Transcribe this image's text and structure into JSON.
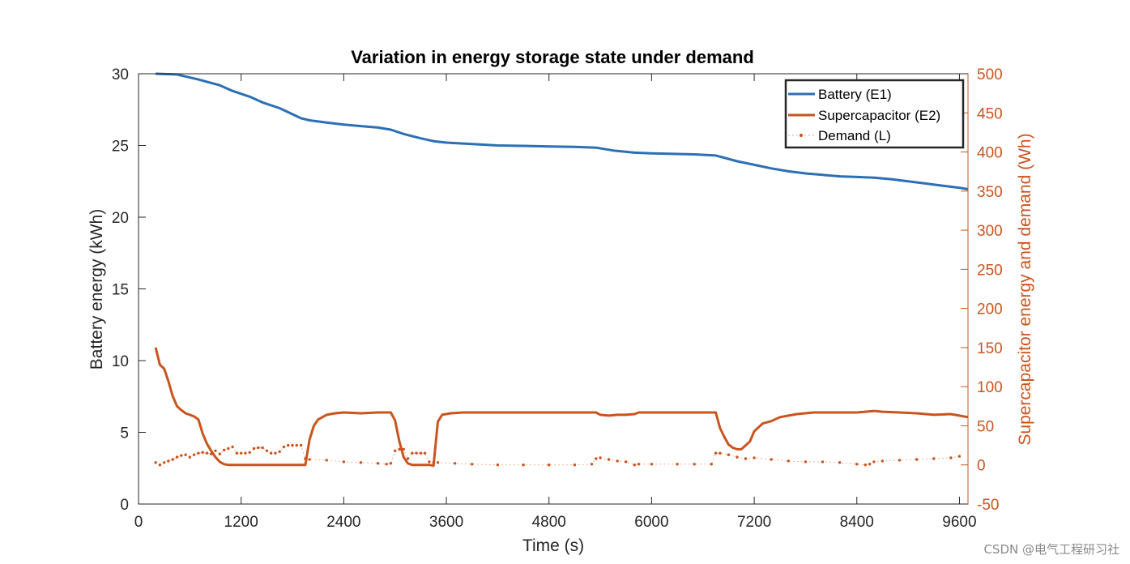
{
  "watermark": "CSDN @电气工程研习社",
  "chart_data": {
    "type": "line",
    "title": "Variation in energy storage state under demand",
    "xlabel": "Time (s)",
    "ylabel": "Battery energy (kWh)",
    "y2label": "Supercapacitor energy and demand (Wh)",
    "xlim": [
      0,
      9700
    ],
    "ylim": [
      0,
      30
    ],
    "y2lim": [
      -50,
      500
    ],
    "xticks": [
      0,
      1200,
      2400,
      3600,
      4800,
      6000,
      7200,
      8400,
      9600
    ],
    "xtick_labels": [
      "0",
      "1200",
      "2400",
      "3600",
      "4800",
      "6000",
      "7200",
      "8400",
      "9600"
    ],
    "yticks": [
      0,
      5,
      10,
      15,
      20,
      25,
      30
    ],
    "ytick_labels": [
      "0",
      "5",
      "10",
      "15",
      "20",
      "25",
      "30"
    ],
    "y2ticks": [
      -50,
      0,
      50,
      100,
      150,
      200,
      250,
      300,
      350,
      400,
      450,
      500
    ],
    "y2tick_labels": [
      "-50",
      "0",
      "50",
      "100",
      "150",
      "200",
      "250",
      "300",
      "350",
      "400",
      "450",
      "500"
    ],
    "legend_position": "top-right",
    "colors": {
      "battery": "#2c6fb5",
      "supercap": "#c9541e",
      "demand": "#c9541e",
      "axis_right": "#c9541e",
      "axis_left": "#262626"
    },
    "series": [
      {
        "name": "Battery (E1)",
        "axis": "left",
        "style": "solid",
        "x": [
          200,
          450,
          700,
          950,
          1100,
          1300,
          1450,
          1650,
          1900,
          2000,
          2200,
          2400,
          2600,
          2800,
          2950,
          3100,
          3300,
          3450,
          3600,
          3900,
          4200,
          4500,
          4800,
          5100,
          5350,
          5550,
          5800,
          6000,
          6200,
          6500,
          6750,
          7000,
          7200,
          7400,
          7600,
          7800,
          8000,
          8200,
          8400,
          8600,
          8800,
          9000,
          9200,
          9400,
          9600,
          9700
        ],
        "values": [
          30,
          29.95,
          29.6,
          29.2,
          28.8,
          28.4,
          28.0,
          27.6,
          26.9,
          26.75,
          26.6,
          26.45,
          26.35,
          26.25,
          26.1,
          25.8,
          25.5,
          25.3,
          25.2,
          25.1,
          25.0,
          24.97,
          24.93,
          24.9,
          24.85,
          24.65,
          24.5,
          24.45,
          24.42,
          24.38,
          24.3,
          23.9,
          23.65,
          23.4,
          23.2,
          23.05,
          22.95,
          22.85,
          22.8,
          22.75,
          22.65,
          22.5,
          22.35,
          22.2,
          22.05,
          21.95
        ]
      },
      {
        "name": "Supercapacitor (E2)",
        "axis": "right",
        "style": "solid",
        "x": [
          200,
          250,
          300,
          350,
          400,
          450,
          500,
          550,
          600,
          650,
          700,
          750,
          800,
          850,
          900,
          950,
          1000,
          1050,
          1100,
          1300,
          1500,
          1700,
          1900,
          1950,
          2000,
          2050,
          2100,
          2200,
          2300,
          2400,
          2600,
          2800,
          2950,
          3000,
          3050,
          3100,
          3150,
          3200,
          3300,
          3400,
          3450,
          3500,
          3550,
          3650,
          3800,
          4200,
          4800,
          5300,
          5350,
          5400,
          5500,
          5600,
          5700,
          5800,
          5850,
          6000,
          6300,
          6500,
          6700,
          6750,
          6800,
          6850,
          6900,
          6950,
          7000,
          7050,
          7100,
          7150,
          7200,
          7300,
          7400,
          7500,
          7600,
          7700,
          7800,
          7900,
          8000,
          8200,
          8400,
          8500,
          8600,
          8700,
          8900,
          9100,
          9300,
          9500,
          9700
        ],
        "values": [
          150,
          128,
          123,
          107,
          88,
          75,
          70,
          66,
          64,
          62,
          58,
          40,
          27,
          18,
          10,
          4,
          1,
          0,
          0,
          0,
          0,
          0,
          0,
          0,
          32,
          50,
          58,
          64,
          66,
          67,
          66,
          67,
          67,
          57,
          30,
          10,
          2,
          0,
          0,
          0,
          -1,
          55,
          64,
          66,
          67,
          67,
          67,
          67,
          67,
          64,
          63,
          64,
          64,
          65,
          67,
          67,
          67,
          67,
          67,
          67,
          47,
          36,
          26,
          22,
          20,
          20,
          25,
          30,
          43,
          53,
          56,
          61,
          63,
          65,
          66,
          67,
          67,
          67,
          67,
          68,
          69,
          68,
          67,
          66,
          64,
          65,
          61
        ]
      },
      {
        "name": "Demand (L)",
        "axis": "right",
        "style": "dotted",
        "x": [
          200,
          250,
          300,
          350,
          400,
          450,
          500,
          550,
          600,
          650,
          700,
          750,
          800,
          850,
          900,
          950,
          1000,
          1050,
          1100,
          1150,
          1200,
          1250,
          1300,
          1350,
          1400,
          1450,
          1500,
          1550,
          1600,
          1650,
          1700,
          1750,
          1800,
          1850,
          1900,
          1950,
          2000,
          2200,
          2400,
          2600,
          2800,
          2900,
          2950,
          3000,
          3050,
          3100,
          3150,
          3200,
          3250,
          3300,
          3350,
          3400,
          3450,
          3500,
          3700,
          3900,
          4200,
          4500,
          4800,
          5100,
          5300,
          5350,
          5400,
          5500,
          5600,
          5700,
          5800,
          5850,
          6000,
          6300,
          6500,
          6700,
          6750,
          6800,
          6900,
          7000,
          7100,
          7200,
          7400,
          7600,
          7800,
          8000,
          8200,
          8400,
          8500,
          8550,
          8600,
          8700,
          8900,
          9100,
          9300,
          9500,
          9600
        ],
        "values": [
          3,
          0,
          3,
          5,
          7,
          10,
          12,
          13,
          10,
          13,
          15,
          16,
          15,
          14,
          18,
          14,
          19,
          21,
          23,
          15,
          15,
          15,
          16,
          21,
          22,
          22,
          18,
          15,
          15,
          17,
          23,
          25,
          25,
          25,
          25,
          8,
          7,
          6,
          4,
          3,
          2,
          1,
          2,
          18,
          20,
          20,
          8,
          15,
          15,
          15,
          15,
          4,
          3,
          3,
          2,
          1,
          0,
          0,
          0,
          0,
          1,
          8,
          9,
          7,
          5,
          4,
          0,
          1,
          1,
          1,
          1,
          1,
          15,
          15,
          13,
          10,
          8,
          9,
          7,
          5,
          4,
          4,
          3,
          1,
          0,
          1,
          4,
          5,
          6,
          7,
          8,
          9,
          11
        ]
      }
    ]
  }
}
